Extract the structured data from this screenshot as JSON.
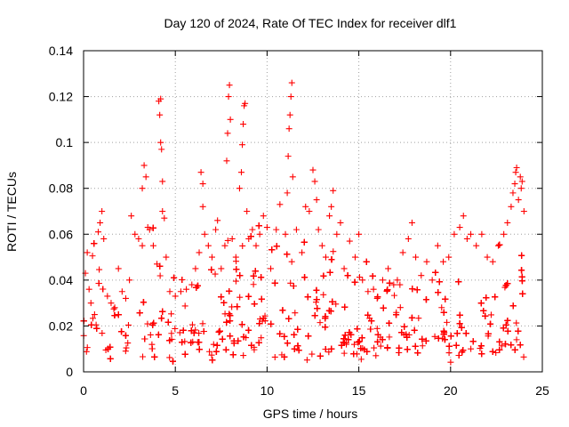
{
  "chart_data": {
    "type": "scatter",
    "title": "Day 120 of 2024, Rate Of TEC Index for receiver dlf1",
    "xlabel": "GPS time / hours",
    "ylabel": "ROTI / TECUs",
    "xlim": [
      0,
      25
    ],
    "ylim": [
      0,
      0.14
    ],
    "xticks": [
      0,
      5,
      10,
      15,
      20,
      25
    ],
    "yticks": [
      0,
      0.02,
      0.04,
      0.06,
      0.08,
      0.1,
      0.12,
      0.14
    ],
    "xtick_labels": [
      "0",
      "5",
      "10",
      "15",
      "20",
      "25"
    ],
    "ytick_labels": [
      "0",
      "0.02",
      "0.04",
      "0.06",
      "0.08",
      "0.1",
      "0.12",
      "0.14"
    ],
    "grid": true,
    "marker": "+",
    "color": "#ff0000",
    "series": [
      {
        "name": "ROTI",
        "points": [
          [
            0.1,
            0.043
          ],
          [
            0.2,
            0.052
          ],
          [
            0.3,
            0.036
          ],
          [
            0.4,
            0.03
          ],
          [
            0.6,
            0.025
          ],
          [
            0.8,
            0.061
          ],
          [
            0.9,
            0.065
          ],
          [
            1.0,
            0.07
          ],
          [
            1.1,
            0.058
          ],
          [
            1.3,
            0.033
          ],
          [
            1.5,
            0.03
          ],
          [
            1.7,
            0.028
          ],
          [
            1.9,
            0.045
          ],
          [
            2.1,
            0.035
          ],
          [
            2.3,
            0.032
          ],
          [
            2.5,
            0.04
          ],
          [
            2.6,
            0.068
          ],
          [
            2.8,
            0.06
          ],
          [
            3.0,
            0.058
          ],
          [
            3.2,
            0.055
          ],
          [
            3.2,
            0.08
          ],
          [
            3.3,
            0.09
          ],
          [
            3.4,
            0.085
          ],
          [
            3.5,
            0.063
          ],
          [
            3.6,
            0.062
          ],
          [
            3.8,
            0.055
          ],
          [
            4.0,
            0.047
          ],
          [
            4.1,
            0.118
          ],
          [
            4.15,
            0.112
          ],
          [
            4.2,
            0.119
          ],
          [
            4.2,
            0.1
          ],
          [
            4.25,
            0.097
          ],
          [
            4.3,
            0.083
          ],
          [
            4.3,
            0.07
          ],
          [
            4.4,
            0.067
          ],
          [
            4.5,
            0.05
          ],
          [
            4.7,
            0.035
          ],
          [
            5.0,
            0.033
          ],
          [
            5.3,
            0.035
          ],
          [
            5.6,
            0.036
          ],
          [
            5.9,
            0.038
          ],
          [
            6.1,
            0.045
          ],
          [
            6.3,
            0.052
          ],
          [
            6.4,
            0.087
          ],
          [
            6.5,
            0.082
          ],
          [
            6.5,
            0.072
          ],
          [
            6.6,
            0.06
          ],
          [
            6.8,
            0.055
          ],
          [
            7.0,
            0.05
          ],
          [
            7.2,
            0.062
          ],
          [
            7.3,
            0.066
          ],
          [
            7.5,
            0.045
          ],
          [
            7.7,
            0.055
          ],
          [
            7.8,
            0.092
          ],
          [
            7.85,
            0.104
          ],
          [
            7.9,
            0.12
          ],
          [
            7.95,
            0.125
          ],
          [
            8.0,
            0.11
          ],
          [
            8.1,
            0.058
          ],
          [
            8.3,
            0.05
          ],
          [
            8.5,
            0.08
          ],
          [
            8.6,
            0.087
          ],
          [
            8.65,
            0.099
          ],
          [
            8.7,
            0.108
          ],
          [
            8.75,
            0.116
          ],
          [
            8.8,
            0.117
          ],
          [
            8.9,
            0.07
          ],
          [
            9.0,
            0.058
          ],
          [
            9.2,
            0.062
          ],
          [
            9.4,
            0.055
          ],
          [
            9.6,
            0.06
          ],
          [
            9.8,
            0.068
          ],
          [
            10.0,
            0.063
          ],
          [
            10.2,
            0.045
          ],
          [
            10.5,
            0.062
          ],
          [
            10.7,
            0.073
          ],
          [
            11.0,
            0.06
          ],
          [
            11.1,
            0.078
          ],
          [
            11.15,
            0.094
          ],
          [
            11.2,
            0.106
          ],
          [
            11.25,
            0.112
          ],
          [
            11.3,
            0.12
          ],
          [
            11.35,
            0.126
          ],
          [
            11.4,
            0.085
          ],
          [
            11.6,
            0.062
          ],
          [
            11.9,
            0.052
          ],
          [
            12.1,
            0.072
          ],
          [
            12.3,
            0.07
          ],
          [
            12.5,
            0.088
          ],
          [
            12.6,
            0.083
          ],
          [
            12.7,
            0.075
          ],
          [
            12.8,
            0.062
          ],
          [
            13.0,
            0.055
          ],
          [
            13.2,
            0.05
          ],
          [
            13.4,
            0.068
          ],
          [
            13.5,
            0.072
          ],
          [
            13.6,
            0.079
          ],
          [
            13.8,
            0.06
          ],
          [
            14.0,
            0.065
          ],
          [
            14.2,
            0.045
          ],
          [
            14.5,
            0.057
          ],
          [
            14.8,
            0.05
          ],
          [
            15.0,
            0.06
          ],
          [
            15.2,
            0.04
          ],
          [
            15.5,
            0.035
          ],
          [
            15.8,
            0.036
          ],
          [
            16.0,
            0.032
          ],
          [
            16.3,
            0.04
          ],
          [
            16.6,
            0.045
          ],
          [
            16.9,
            0.038
          ],
          [
            17.1,
            0.04
          ],
          [
            17.4,
            0.052
          ],
          [
            17.7,
            0.058
          ],
          [
            17.9,
            0.065
          ],
          [
            18.1,
            0.05
          ],
          [
            18.4,
            0.042
          ],
          [
            18.7,
            0.048
          ],
          [
            19.0,
            0.04
          ],
          [
            19.3,
            0.055
          ],
          [
            19.6,
            0.048
          ],
          [
            19.9,
            0.05
          ],
          [
            20.2,
            0.06
          ],
          [
            20.5,
            0.063
          ],
          [
            20.7,
            0.068
          ],
          [
            20.9,
            0.058
          ],
          [
            21.1,
            0.06
          ],
          [
            21.4,
            0.055
          ],
          [
            21.7,
            0.06
          ],
          [
            22.0,
            0.05
          ],
          [
            22.3,
            0.048
          ],
          [
            22.6,
            0.055
          ],
          [
            22.9,
            0.06
          ],
          [
            23.1,
            0.065
          ],
          [
            23.3,
            0.072
          ],
          [
            23.4,
            0.078
          ],
          [
            23.5,
            0.082
          ],
          [
            23.55,
            0.087
          ],
          [
            23.6,
            0.089
          ],
          [
            23.7,
            0.075
          ],
          [
            23.8,
            0.085
          ],
          [
            23.85,
            0.08
          ],
          [
            23.9,
            0.083
          ],
          [
            24.0,
            0.07
          ]
        ]
      }
    ]
  }
}
